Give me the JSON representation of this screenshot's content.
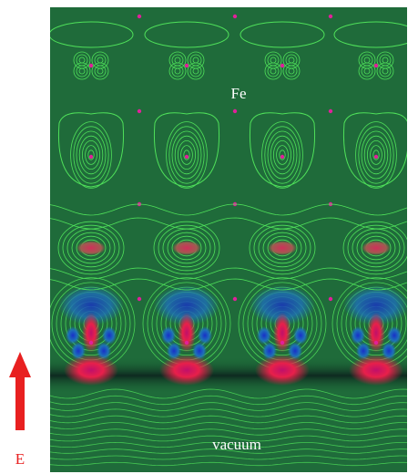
{
  "labels": {
    "top_layer": "Fe",
    "bottom_region": "vacuum",
    "field_arrow": "E"
  }
}
